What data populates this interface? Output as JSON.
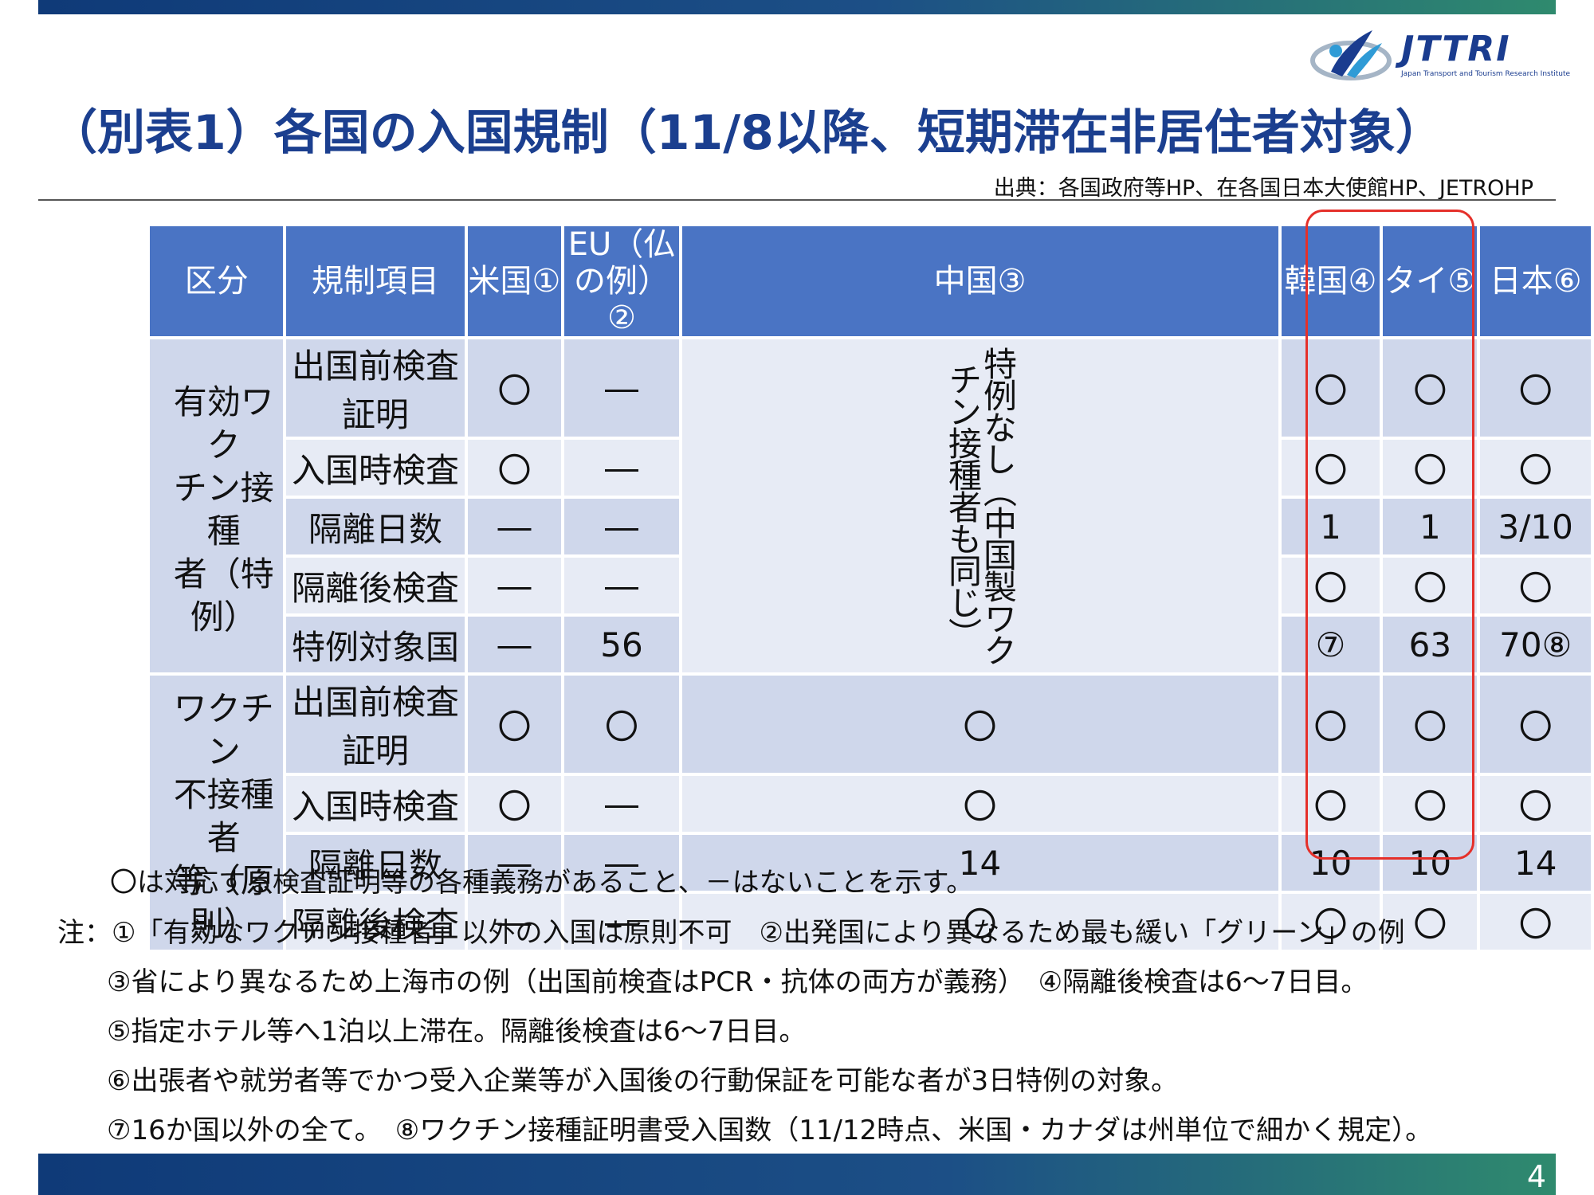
{
  "header": {
    "title": "（別表1）各国の入国規制（11/8以降、短期滞在非居住者対象）",
    "source": "出典：各国政府等HP、在各国日本大使館HP、JETROHP",
    "logo_text": "JTTRI",
    "logo_subtitle": "Japan Transport and Tourism Research Institute"
  },
  "table": {
    "headers": [
      "区分",
      "規制項目",
      "米国①",
      "EU（仏の例）②",
      "中国③",
      "韓国④",
      "タイ⑤",
      "日本⑥"
    ],
    "groups": [
      {
        "category": "有効ワク\nチン接種\n者（特例）",
        "china_merged": "特例なし（中国製ワクチン接種者も同じ）",
        "rows": [
          {
            "item": "出国前検査証明",
            "us": "〇",
            "eu": "―",
            "kr": "〇",
            "th": "〇",
            "jp": "〇"
          },
          {
            "item": "入国時検査",
            "us": "〇",
            "eu": "―",
            "kr": "〇",
            "th": "〇",
            "jp": "〇"
          },
          {
            "item": "隔離日数",
            "us": "―",
            "eu": "―",
            "kr": "1",
            "th": "1",
            "jp": "3/10"
          },
          {
            "item": "隔離後検査",
            "us": "―",
            "eu": "―",
            "kr": "〇",
            "th": "〇",
            "jp": "〇"
          },
          {
            "item": "特例対象国",
            "us": "―",
            "eu": "56",
            "kr": "⑦",
            "th": "63",
            "jp": "70⑧"
          }
        ]
      },
      {
        "category": "ワクチン\n不接種者\n等（原則）",
        "rows": [
          {
            "item": "出国前検査証明",
            "us": "〇",
            "eu": "〇",
            "cn": "〇",
            "kr": "〇",
            "th": "〇",
            "jp": "〇"
          },
          {
            "item": "入国時検査",
            "us": "〇",
            "eu": "―",
            "cn": "〇",
            "kr": "〇",
            "th": "〇",
            "jp": "〇"
          },
          {
            "item": "隔離日数",
            "us": "―",
            "eu": "―",
            "cn": "14",
            "kr": "10",
            "th": "10",
            "jp": "14"
          },
          {
            "item": "隔離後検査",
            "us": "―",
            "eu": "―",
            "cn": "〇",
            "kr": "〇",
            "th": "〇",
            "jp": "〇"
          }
        ]
      }
    ]
  },
  "legend": "〇は対応する検査証明等の各種義務があること、－はないことを示す。",
  "notes": [
    "注：①「有効なワクチン接種者」以外の入国は原則不可　②出発国により異なるため最も緩い「グリーン」の例",
    "③省により異なるため上海市の例（出国前検査はPCR・抗体の両方が義務）　④隔離後検査は6～7日目。",
    "⑤指定ホテル等へ1泊以上滞在。隔離後検査は6～7日目。",
    "⑥出張者や就労者等でかつ受入企業等が入国後の行動保証を可能な者が3日特例の対象。",
    "⑦16か国以外の全て。　⑧ワクチン接種証明書受入国数（11/12時点、米国・カナダは州単位で細かく規定）。"
  ],
  "page_number": "4",
  "colors": {
    "header_blue": "#4a74c4",
    "row_dark": "#cfd7eb",
    "row_light": "#e7ebf5",
    "title_blue": "#1b3f8f",
    "highlight_red": "#e5302a"
  }
}
